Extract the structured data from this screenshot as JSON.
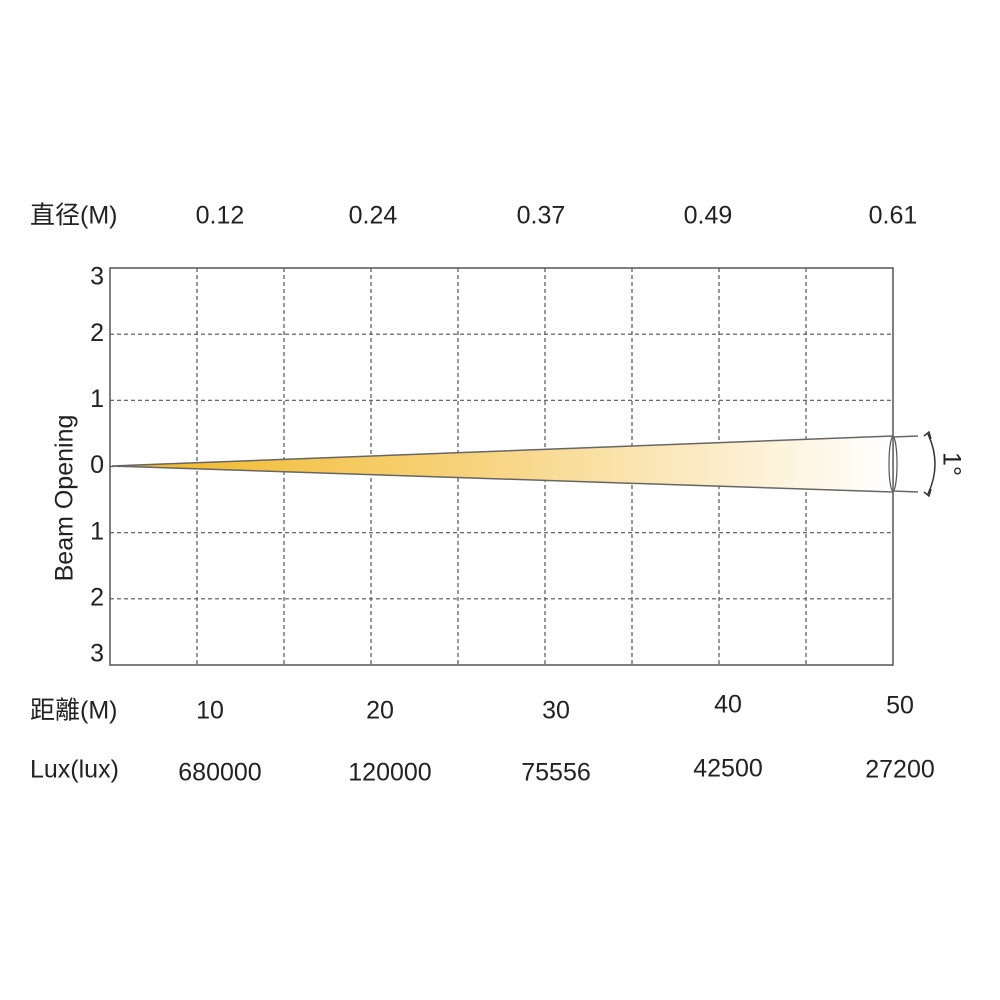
{
  "diameter_row": {
    "label": "直径(M)",
    "values": [
      "0.12",
      "0.24",
      "0.37",
      "0.49",
      "0.61"
    ]
  },
  "y_axis": {
    "label": "Beam Opening",
    "ticks": [
      "3",
      "2",
      "1",
      "0",
      "1",
      "2",
      "3"
    ]
  },
  "distance_row": {
    "label": "距離(M)",
    "values": [
      "10",
      "20",
      "30",
      "40",
      "50"
    ]
  },
  "lux_row": {
    "label": "Lux(lux)",
    "values": [
      "680000",
      "120000",
      "75556",
      "42500",
      "27200"
    ]
  },
  "beam_angle": "1°"
}
